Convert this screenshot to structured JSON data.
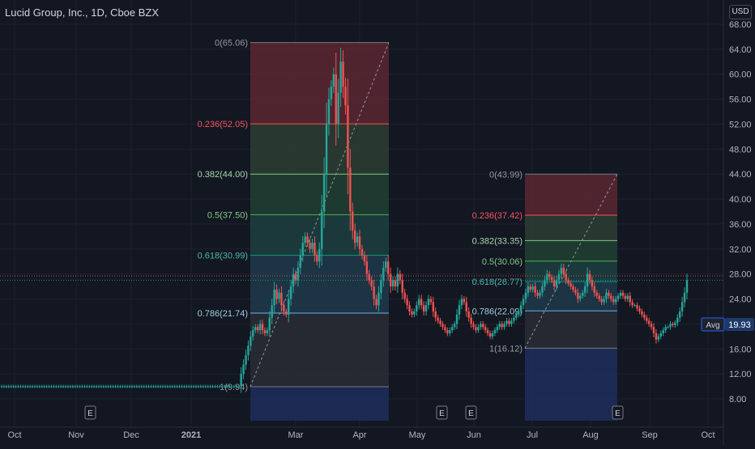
{
  "header": {
    "title": "Lucid Group, Inc., 1D, Cboe BZX",
    "currency": "USD"
  },
  "colors": {
    "background": "#131722",
    "up": "#26a69a",
    "down": "#ef5350",
    "axis_text": "#b2b5be",
    "grid": "#1e222d"
  },
  "chart_data": {
    "type": "candlestick",
    "y_ticks": [
      "8.00",
      "12.00",
      "16.00",
      "20.00",
      "24.00",
      "28.00",
      "32.00",
      "36.00",
      "40.00",
      "44.00",
      "48.00",
      "52.00",
      "56.00",
      "60.00",
      "64.00",
      "68.00"
    ],
    "x_ticks": [
      "Oct",
      "Nov",
      "Dec",
      "2021",
      "Mar",
      "Apr",
      "May",
      "Jun",
      "Jul",
      "Aug",
      "Sep",
      "Oct"
    ],
    "ylim": [
      5,
      70
    ],
    "earnings_markers": [
      "E",
      "E",
      "E",
      "E"
    ],
    "avg_label": "Avg",
    "avg_value": "19.93",
    "price_levels": [
      27.7,
      27.0
    ],
    "fib_retracements": [
      {
        "levels": [
          {
            "ratio": "0",
            "price": 65.06,
            "label": "0(65.06)"
          },
          {
            "ratio": "0.236",
            "price": 52.05,
            "label": "0.236(52.05)"
          },
          {
            "ratio": "0.382",
            "price": 44.0,
            "label": "0.382(44.00)"
          },
          {
            "ratio": "0.5",
            "price": 37.5,
            "label": "0.5(37.50)"
          },
          {
            "ratio": "0.618",
            "price": 30.99,
            "label": "0.618(30.99)"
          },
          {
            "ratio": "0.786",
            "price": 21.74,
            "label": "0.786(21.74)"
          },
          {
            "ratio": "1",
            "price": 9.94,
            "label": "1(9.94)"
          }
        ]
      },
      {
        "levels": [
          {
            "ratio": "0",
            "price": 43.99,
            "label": "0(43.99)"
          },
          {
            "ratio": "0.236",
            "price": 37.42,
            "label": "0.236(37.42)"
          },
          {
            "ratio": "0.382",
            "price": 33.35,
            "label": "0.382(33.35)"
          },
          {
            "ratio": "0.5",
            "price": 30.06,
            "label": "0.5(30.06)"
          },
          {
            "ratio": "0.618",
            "price": 26.77,
            "label": "0.618(26.77)"
          },
          {
            "ratio": "0.786",
            "price": 22.09,
            "label": "0.786(22.09)"
          },
          {
            "ratio": "1",
            "price": 16.12,
            "label": "1(16.12)"
          }
        ]
      }
    ],
    "series": [
      {
        "close": [
          10,
          10,
          10,
          10,
          10,
          10,
          10,
          10,
          10,
          10,
          10,
          10,
          10,
          10,
          10,
          10,
          10,
          10,
          10,
          10,
          10,
          10,
          10,
          10,
          10,
          10,
          10,
          10,
          10,
          10,
          10,
          10,
          10,
          10,
          10,
          10,
          10,
          10,
          10,
          10,
          10,
          10,
          10,
          10,
          10,
          10,
          10,
          10,
          10,
          10,
          10,
          10,
          10,
          10,
          10,
          10,
          10,
          10,
          10,
          10,
          10,
          10,
          10,
          10,
          10,
          10,
          10,
          10,
          10,
          10,
          10,
          10,
          10,
          10,
          10,
          10,
          10,
          10,
          10,
          10,
          10,
          10,
          10,
          10,
          10,
          10,
          10,
          10,
          10,
          10,
          10,
          10,
          10,
          10,
          10,
          10,
          10,
          10,
          10,
          10,
          10,
          12,
          13.5,
          15,
          16.5,
          18,
          19,
          19.5,
          19,
          20,
          19,
          18.5,
          19,
          21,
          23,
          25.5,
          24,
          25,
          23,
          22,
          21.5,
          24,
          26,
          28,
          27,
          29,
          31,
          33,
          34,
          33,
          32,
          33,
          31,
          30,
          32,
          38,
          44,
          52,
          56,
          58,
          60,
          52,
          57,
          62,
          58,
          55,
          45,
          38,
          35,
          33,
          34,
          32,
          31,
          30,
          28,
          27,
          26,
          24,
          23,
          25,
          27,
          29,
          30,
          28,
          26,
          27,
          26,
          28,
          27,
          25,
          24,
          23,
          22,
          21.5,
          22,
          23,
          24,
          23,
          22,
          23,
          24,
          23.5,
          22,
          21,
          20.5,
          20,
          19.5,
          19,
          18.5,
          19,
          19.5,
          20,
          21.5,
          23,
          24,
          23.5,
          22,
          21,
          20,
          19.5,
          19,
          19.5,
          20,
          19.5,
          19,
          18.5,
          18,
          18.5,
          19,
          19.5,
          20,
          19.5,
          20,
          20.5,
          20,
          20.5,
          21,
          21.5,
          22,
          23,
          24,
          25,
          26,
          25.5,
          26,
          25,
          24.5,
          25,
          26,
          27,
          28,
          27.5,
          27,
          26,
          27,
          28,
          29,
          28,
          27,
          26.5,
          26,
          25.5,
          25,
          24,
          24.5,
          25,
          26,
          28,
          27,
          26,
          25,
          24.5,
          24,
          23.5,
          24,
          25,
          24.5,
          24,
          23.5,
          24,
          24.5,
          25,
          24.5,
          24,
          24.5,
          23.5,
          23,
          23,
          22.5,
          22,
          21.5,
          21,
          20.5,
          20,
          19.5,
          18.5,
          17.5,
          18,
          18.5,
          19,
          19.5,
          19.5,
          20,
          19.8,
          20.2,
          21,
          22,
          23.5,
          25,
          27
        ]
      }
    ]
  }
}
